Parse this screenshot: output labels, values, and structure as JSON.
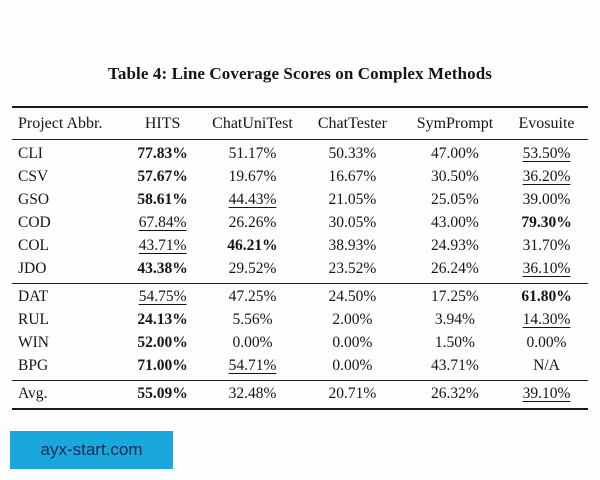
{
  "title": "Table 4: Line Coverage Scores on Complex Methods",
  "table": {
    "columns": [
      "Project Abbr.",
      "HITS",
      "ChatUniTest",
      "ChatTester",
      "SymPrompt",
      "Evosuite"
    ],
    "groups": [
      {
        "rows": [
          {
            "project": "CLI",
            "values": [
              {
                "t": "77.83%",
                "b": true
              },
              {
                "t": "51.17%"
              },
              {
                "t": "50.33%"
              },
              {
                "t": "47.00%"
              },
              {
                "t": "53.50%",
                "u": true
              }
            ]
          },
          {
            "project": "CSV",
            "values": [
              {
                "t": "57.67%",
                "b": true
              },
              {
                "t": "19.67%"
              },
              {
                "t": "16.67%"
              },
              {
                "t": "30.50%"
              },
              {
                "t": "36.20%",
                "u": true
              }
            ]
          },
          {
            "project": "GSO",
            "values": [
              {
                "t": "58.61%",
                "b": true
              },
              {
                "t": "44.43%",
                "u": true
              },
              {
                "t": "21.05%"
              },
              {
                "t": "25.05%"
              },
              {
                "t": "39.00%"
              }
            ]
          },
          {
            "project": "COD",
            "values": [
              {
                "t": "67.84%",
                "u": true
              },
              {
                "t": "26.26%"
              },
              {
                "t": "30.05%"
              },
              {
                "t": "43.00%"
              },
              {
                "t": "79.30%",
                "b": true
              }
            ]
          },
          {
            "project": "COL",
            "values": [
              {
                "t": "43.71%",
                "u": true
              },
              {
                "t": "46.21%",
                "b": true
              },
              {
                "t": "38.93%"
              },
              {
                "t": "24.93%"
              },
              {
                "t": "31.70%"
              }
            ]
          },
          {
            "project": "JDO",
            "values": [
              {
                "t": "43.38%",
                "b": true
              },
              {
                "t": "29.52%"
              },
              {
                "t": "23.52%"
              },
              {
                "t": "26.24%"
              },
              {
                "t": "36.10%",
                "u": true
              }
            ]
          }
        ]
      },
      {
        "rows": [
          {
            "project": "DAT",
            "values": [
              {
                "t": "54.75%",
                "u": true
              },
              {
                "t": "47.25%"
              },
              {
                "t": "24.50%"
              },
              {
                "t": "17.25%"
              },
              {
                "t": "61.80%",
                "b": true
              }
            ]
          },
          {
            "project": "RUL",
            "values": [
              {
                "t": "24.13%",
                "b": true
              },
              {
                "t": "5.56%"
              },
              {
                "t": "2.00%"
              },
              {
                "t": "3.94%"
              },
              {
                "t": "14.30%",
                "u": true
              }
            ]
          },
          {
            "project": "WIN",
            "values": [
              {
                "t": "52.00%",
                "b": true
              },
              {
                "t": "0.00%"
              },
              {
                "t": "0.00%"
              },
              {
                "t": "1.50%"
              },
              {
                "t": "0.00%"
              }
            ]
          },
          {
            "project": "BPG",
            "values": [
              {
                "t": "71.00%",
                "b": true
              },
              {
                "t": "54.71%",
                "u": true
              },
              {
                "t": "0.00%"
              },
              {
                "t": "43.71%"
              },
              {
                "t": "N/A"
              }
            ]
          }
        ]
      },
      {
        "rows": [
          {
            "project": "Avg.",
            "values": [
              {
                "t": "55.09%",
                "b": true
              },
              {
                "t": "32.48%"
              },
              {
                "t": "20.71%"
              },
              {
                "t": "26.32%"
              },
              {
                "t": "39.10%",
                "u": true
              }
            ]
          }
        ]
      }
    ]
  },
  "watermark": {
    "label": "ayx-start.com",
    "bg_color": "#1aa7db",
    "text_color": "#1e2a50"
  }
}
